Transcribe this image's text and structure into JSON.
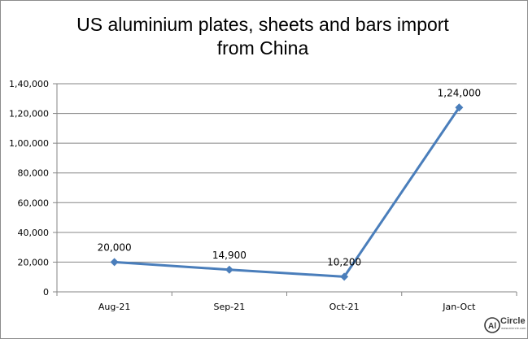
{
  "chart_data": {
    "type": "line",
    "title_lines": [
      "US aluminium plates, sheets and bars import",
      "from China"
    ],
    "categories": [
      "Aug-21",
      "Sep-21",
      "Oct-21",
      "Jan-Oct"
    ],
    "series": [
      {
        "values": [
          20000,
          14900,
          10200,
          124000
        ],
        "color": "#4a7ebb"
      }
    ],
    "data_labels": [
      "20,000",
      "14,900",
      "10,200",
      "1,24,000"
    ],
    "y_ticks": [
      0,
      20000,
      40000,
      60000,
      80000,
      100000,
      120000,
      140000
    ],
    "y_tick_labels": [
      "0",
      "20,000",
      "40,000",
      "60,000",
      "80,000",
      "1,00,000",
      "1,20,000",
      "1,40,000"
    ],
    "ylim": [
      0,
      140000
    ],
    "grid": true,
    "legend": "none",
    "xlabel": "",
    "ylabel": ""
  },
  "logo": {
    "mark": "Al",
    "word": "Circle",
    "tagline": "www.alcircle.com"
  },
  "colors": {
    "line": "#4a7ebb",
    "grid": "#868686",
    "axis": "#868686",
    "frame": "#8c8c8c"
  }
}
